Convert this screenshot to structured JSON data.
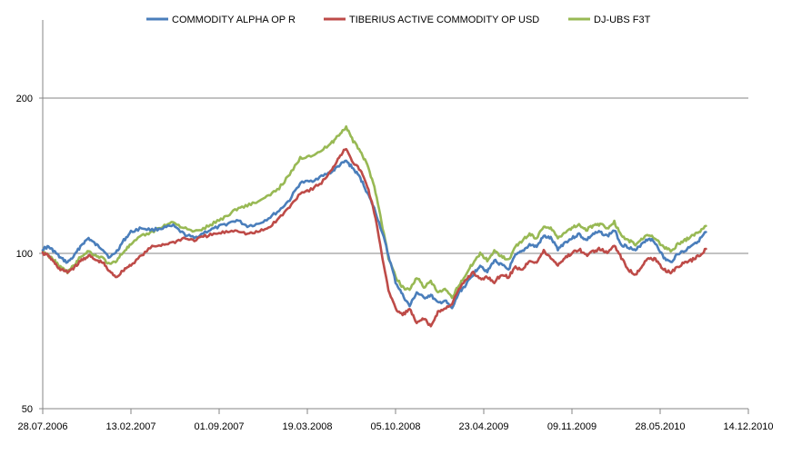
{
  "chart_data": {
    "type": "line",
    "title": "",
    "xlabel": "",
    "ylabel": "",
    "y_scale": "log",
    "ylim": [
      50,
      260
    ],
    "y_ticks": [
      50,
      100,
      200
    ],
    "y_tick_labels": [
      "50",
      "100",
      "200"
    ],
    "gridlines": [
      100,
      200
    ],
    "x_range": [
      "28.07.2006",
      "14.12.2010"
    ],
    "x_tick_labels": [
      "28.07.2006",
      "13.02.2007",
      "01.09.2007",
      "19.03.2008",
      "05.10.2008",
      "23.04.2009",
      "09.11.2009",
      "28.05.2010",
      "14.12.2010"
    ],
    "x_axis_fraction": [
      0,
      0.125,
      0.25,
      0.375,
      0.5,
      0.625,
      0.75,
      0.875,
      1.0
    ],
    "legend_position": "top",
    "series": [
      {
        "name": "COMMODITY ALPHA OP R",
        "color": "#4a7ebb",
        "t": [
          0,
          0.008,
          0.016,
          0.025,
          0.035,
          0.045,
          0.055,
          0.065,
          0.075,
          0.085,
          0.095,
          0.105,
          0.115,
          0.125,
          0.14,
          0.155,
          0.17,
          0.185,
          0.2,
          0.215,
          0.23,
          0.245,
          0.26,
          0.275,
          0.29,
          0.305,
          0.32,
          0.335,
          0.35,
          0.365,
          0.38,
          0.395,
          0.41,
          0.42,
          0.43,
          0.44,
          0.45,
          0.46,
          0.47,
          0.48,
          0.49,
          0.5,
          0.51,
          0.52,
          0.53,
          0.54,
          0.55,
          0.56,
          0.57,
          0.58,
          0.59,
          0.6,
          0.61,
          0.62,
          0.63,
          0.64,
          0.65,
          0.66,
          0.67,
          0.68,
          0.69,
          0.7,
          0.71,
          0.72,
          0.73,
          0.74,
          0.75,
          0.76,
          0.77,
          0.78,
          0.79,
          0.8,
          0.81,
          0.82,
          0.83,
          0.84,
          0.85,
          0.86,
          0.87,
          0.88,
          0.89,
          0.9,
          0.91,
          0.92,
          0.93,
          0.94
        ],
        "values": [
          102,
          103,
          101,
          98,
          96,
          99,
          104,
          107,
          104,
          102,
          98,
          101,
          106,
          110,
          112,
          111,
          112,
          113,
          109,
          107,
          110,
          112,
          114,
          116,
          113,
          114,
          117,
          121,
          127,
          137,
          138,
          141,
          144,
          148,
          151,
          146,
          140,
          131,
          122,
          111,
          99,
          88,
          83,
          79,
          84,
          82,
          83,
          80,
          81,
          78,
          84,
          87,
          91,
          95,
          92,
          97,
          95,
          93,
          99,
          101,
          104,
          103,
          108,
          107,
          102,
          105,
          107,
          109,
          106,
          109,
          110,
          108,
          111,
          104,
          103,
          101,
          105,
          107,
          104,
          98,
          96,
          100,
          101,
          104,
          106,
          110
        ]
      },
      {
        "name": "TIBERIUS  ACTIVE COMMODITY OP USD",
        "color": "#be4b48",
        "t": [
          0,
          0.008,
          0.016,
          0.025,
          0.035,
          0.045,
          0.055,
          0.065,
          0.075,
          0.085,
          0.095,
          0.105,
          0.115,
          0.125,
          0.14,
          0.155,
          0.17,
          0.185,
          0.2,
          0.215,
          0.23,
          0.245,
          0.26,
          0.275,
          0.29,
          0.305,
          0.32,
          0.335,
          0.35,
          0.365,
          0.38,
          0.395,
          0.41,
          0.42,
          0.43,
          0.44,
          0.45,
          0.46,
          0.47,
          0.48,
          0.49,
          0.5,
          0.51,
          0.52,
          0.53,
          0.54,
          0.55,
          0.56,
          0.57,
          0.58,
          0.59,
          0.6,
          0.61,
          0.62,
          0.63,
          0.64,
          0.65,
          0.66,
          0.67,
          0.68,
          0.69,
          0.7,
          0.71,
          0.72,
          0.73,
          0.74,
          0.75,
          0.76,
          0.77,
          0.78,
          0.79,
          0.8,
          0.81,
          0.82,
          0.83,
          0.84,
          0.85,
          0.86,
          0.87,
          0.88,
          0.89,
          0.9,
          0.91,
          0.92,
          0.93,
          0.94
        ],
        "values": [
          100,
          99,
          96,
          93,
          92,
          94,
          97,
          99,
          97,
          96,
          92,
          90,
          93,
          95,
          99,
          103,
          104,
          105,
          107,
          106,
          108,
          109,
          110,
          111,
          109,
          110,
          112,
          117,
          123,
          131,
          133,
          137,
          145,
          154,
          160,
          150,
          145,
          135,
          120,
          100,
          85,
          78,
          76,
          78,
          73,
          75,
          72,
          77,
          78,
          80,
          85,
          89,
          92,
          89,
          90,
          88,
          91,
          90,
          94,
          93,
          97,
          96,
          101,
          98,
          95,
          98,
          100,
          102,
          99,
          101,
          102,
          100,
          104,
          98,
          93,
          91,
          95,
          98,
          97,
          93,
          92,
          94,
          96,
          97,
          99,
          102
        ]
      },
      {
        "name": "DJ-UBS F3T",
        "color": "#98b954",
        "t": [
          0,
          0.008,
          0.016,
          0.025,
          0.035,
          0.045,
          0.055,
          0.065,
          0.075,
          0.085,
          0.095,
          0.105,
          0.115,
          0.125,
          0.14,
          0.155,
          0.17,
          0.185,
          0.2,
          0.215,
          0.23,
          0.245,
          0.26,
          0.275,
          0.29,
          0.305,
          0.32,
          0.335,
          0.35,
          0.365,
          0.38,
          0.395,
          0.41,
          0.42,
          0.43,
          0.44,
          0.45,
          0.46,
          0.47,
          0.48,
          0.49,
          0.5,
          0.51,
          0.52,
          0.53,
          0.54,
          0.55,
          0.56,
          0.57,
          0.58,
          0.59,
          0.6,
          0.61,
          0.62,
          0.63,
          0.64,
          0.65,
          0.66,
          0.67,
          0.68,
          0.69,
          0.7,
          0.71,
          0.72,
          0.73,
          0.74,
          0.75,
          0.76,
          0.77,
          0.78,
          0.79,
          0.8,
          0.81,
          0.82,
          0.83,
          0.84,
          0.85,
          0.86,
          0.87,
          0.88,
          0.89,
          0.9,
          0.91,
          0.92,
          0.93,
          0.94
        ],
        "values": [
          101,
          99,
          97,
          94,
          92,
          95,
          99,
          101,
          99,
          98,
          95,
          97,
          101,
          104,
          108,
          110,
          113,
          115,
          112,
          110,
          112,
          115,
          118,
          122,
          124,
          126,
          129,
          134,
          142,
          153,
          155,
          158,
          164,
          170,
          176,
          165,
          158,
          148,
          135,
          115,
          98,
          90,
          86,
          85,
          90,
          86,
          88,
          84,
          85,
          82,
          87,
          91,
          96,
          100,
          97,
          101,
          99,
          97,
          103,
          106,
          109,
          107,
          113,
          112,
          107,
          110,
          112,
          114,
          111,
          113,
          114,
          112,
          115,
          108,
          106,
          104,
          107,
          109,
          106,
          103,
          101,
          104,
          106,
          108,
          110,
          113
        ]
      }
    ]
  }
}
